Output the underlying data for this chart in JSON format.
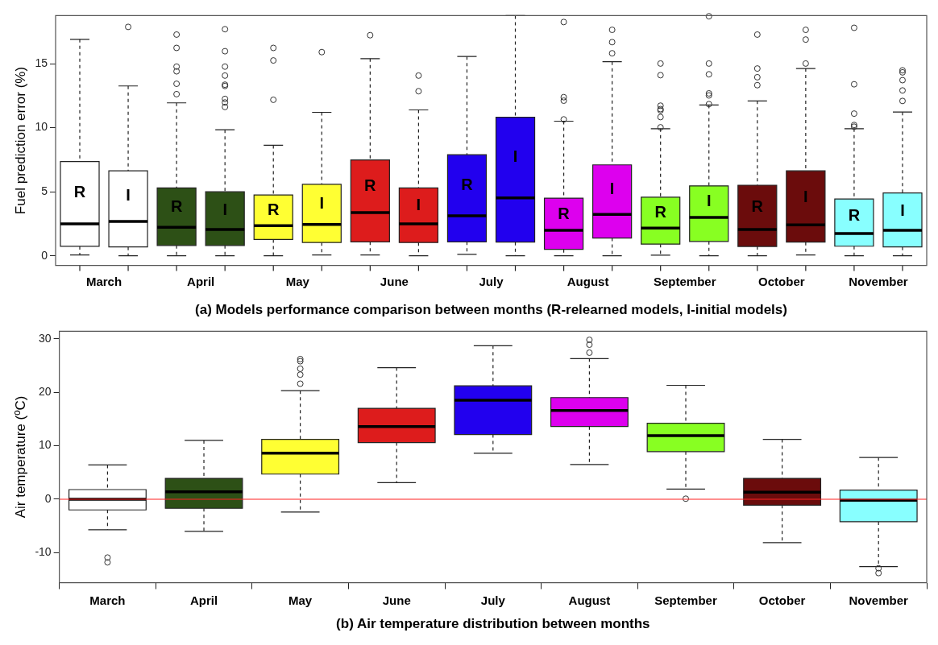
{
  "chart_data": [
    {
      "type": "box",
      "ylabel": "Fuel prediction error (%)",
      "xlabel": "(a) Models performance comparison between months (R-relearned models, I-initial models)",
      "categories": [
        "March",
        "April",
        "May",
        "June",
        "July",
        "August",
        "September",
        "October",
        "November"
      ],
      "ylim": [
        -0.75,
        18.75
      ],
      "yticks": [
        0,
        5,
        10,
        15
      ],
      "series": [
        {
          "name": "R",
          "colors": [
            "#ffffff",
            "#2d5016",
            "#ffff33",
            "#dd1c1c",
            "#2200ee",
            "#dd00ee",
            "#88ff22",
            "#6b0c0c",
            "#88ffff"
          ],
          "boxes": [
            {
              "low": 0.07,
              "q1": 0.74,
              "median": 2.5,
              "q3": 7.36,
              "high": 16.9
            },
            {
              "low": 0,
              "q1": 0.81,
              "median": 2.22,
              "q3": 5.3,
              "high": 11.94,
              "outliers": [
                17.27,
                16.23,
                14.77,
                14.4,
                13.43,
                12.62
              ]
            },
            {
              "low": 0,
              "q1": 1.27,
              "median": 2.36,
              "q3": 4.75,
              "high": 8.63,
              "outliers": [
                16.23,
                15.25,
                12.18
              ]
            },
            {
              "low": 0.07,
              "q1": 1.09,
              "median": 3.38,
              "q3": 7.48,
              "high": 15.39,
              "outliers": [
                17.22
              ]
            },
            {
              "low": 0.11,
              "q1": 1.09,
              "median": 3.13,
              "q3": 7.89,
              "high": 15.56
            },
            {
              "low": 0,
              "q1": 0.5,
              "median": 1.99,
              "q3": 4.5,
              "high": 10.51,
              "outliers": [
                18.25,
                12.38,
                12.11,
                10.65
              ]
            },
            {
              "low": 0.05,
              "q1": 0.91,
              "median": 2.17,
              "q3": 4.57,
              "high": 9.92,
              "outliers": [
                15.01,
                14.1,
                11.72,
                11.45,
                11.35,
                10.83,
                10.03
              ]
            },
            {
              "low": 0,
              "q1": 0.73,
              "median": 2.06,
              "q3": 5.51,
              "high": 12.09,
              "outliers": [
                17.27,
                14.62,
                13.94,
                13.32
              ]
            },
            {
              "low": 0,
              "q1": 0.75,
              "median": 1.74,
              "q3": 4.43,
              "high": 9.92,
              "outliers": [
                17.8,
                13.39,
                11.1,
                10.21,
                10.08
              ]
            }
          ]
        },
        {
          "name": "I",
          "colors": [
            "#ffffff",
            "#2d5016",
            "#ffff33",
            "#dd1c1c",
            "#2200ee",
            "#dd00ee",
            "#88ff22",
            "#6b0c0c",
            "#88ffff"
          ],
          "boxes": [
            {
              "low": 0,
              "q1": 0.69,
              "median": 2.69,
              "q3": 6.64,
              "high": 13.26,
              "outliers": [
                17.87
              ]
            },
            {
              "low": 0,
              "q1": 0.81,
              "median": 2.06,
              "q3": 5.0,
              "high": 9.84,
              "outliers": [
                17.69,
                15.97,
                14.77,
                14.07,
                13.36,
                13.26,
                12.25,
                11.97,
                11.62
              ]
            },
            {
              "low": 0.07,
              "q1": 1.04,
              "median": 2.45,
              "q3": 5.58,
              "high": 11.2,
              "outliers": [
                15.9
              ]
            },
            {
              "low": 0,
              "q1": 1.04,
              "median": 2.5,
              "q3": 5.3,
              "high": 11.39,
              "outliers": [
                14.07,
                12.85
              ]
            },
            {
              "low": 0,
              "q1": 1.07,
              "median": 4.52,
              "q3": 10.81,
              "high": 18.75
            },
            {
              "low": 0,
              "q1": 1.39,
              "median": 3.24,
              "q3": 7.1,
              "high": 15.15,
              "outliers": [
                17.64,
                16.68,
                15.81
              ]
            },
            {
              "low": 0,
              "q1": 1.12,
              "median": 2.99,
              "q3": 5.46,
              "high": 11.77,
              "outliers": [
                18.7,
                15.01,
                14.17,
                12.68,
                12.52,
                11.84
              ]
            },
            {
              "low": 0.07,
              "q1": 1.07,
              "median": 2.42,
              "q3": 6.63,
              "high": 14.62,
              "outliers": [
                17.64,
                16.88,
                15.01
              ]
            },
            {
              "low": 0,
              "q1": 0.69,
              "median": 1.99,
              "q3": 4.91,
              "high": 11.22,
              "outliers": [
                14.48,
                14.32,
                13.71,
                12.91,
                12.09
              ]
            }
          ]
        }
      ]
    },
    {
      "type": "box",
      "ylabel": "Air temperature (ºC)",
      "xlabel": "(b) Air temperature distribution between months",
      "categories": [
        "March",
        "April",
        "May",
        "June",
        "July",
        "August",
        "September",
        "October",
        "November"
      ],
      "ylim": [
        -15.6,
        31.4
      ],
      "yticks": [
        -10,
        0,
        10,
        20,
        30
      ],
      "colors": [
        "#ffffff",
        "#2d5016",
        "#ffff33",
        "#dd1c1c",
        "#2200ee",
        "#dd00ee",
        "#88ff22",
        "#6b0c0c",
        "#88ffff"
      ],
      "boxes": [
        {
          "low": -5.7,
          "q1": -2.0,
          "median": 0,
          "q3": 1.8,
          "high": 6.4,
          "outliers": [
            -10.9,
            -11.8
          ]
        },
        {
          "low": -6.0,
          "q1": -1.7,
          "median": 1.4,
          "q3": 3.9,
          "high": 11.0
        },
        {
          "low": -2.4,
          "q1": 4.7,
          "median": 8.6,
          "q3": 11.2,
          "high": 20.3,
          "outliers": [
            26.2,
            25.8,
            24.4,
            23.3,
            21.6
          ]
        },
        {
          "low": 3.1,
          "q1": 10.6,
          "median": 13.6,
          "q3": 17.0,
          "high": 24.6
        },
        {
          "low": 8.6,
          "q1": 12.1,
          "median": 18.5,
          "q3": 21.2,
          "high": 28.7
        },
        {
          "low": 6.5,
          "q1": 13.6,
          "median": 16.6,
          "q3": 19.0,
          "high": 26.3,
          "outliers": [
            29.8,
            28.9,
            27.4
          ]
        },
        {
          "low": 1.9,
          "q1": 8.9,
          "median": 11.9,
          "q3": 14.2,
          "high": 21.3,
          "outliers": [
            0.1
          ]
        },
        {
          "low": -8.1,
          "q1": -1.1,
          "median": 1.3,
          "q3": 3.9,
          "high": 11.2
        },
        {
          "low": -12.6,
          "q1": -4.2,
          "median": -0.2,
          "q3": 1.7,
          "high": 7.8,
          "outliers": [
            -12.9,
            -13.8
          ]
        }
      ],
      "ref_lines": [
        {
          "axis": "y",
          "value": 0,
          "color": "#ff2222"
        }
      ]
    }
  ]
}
